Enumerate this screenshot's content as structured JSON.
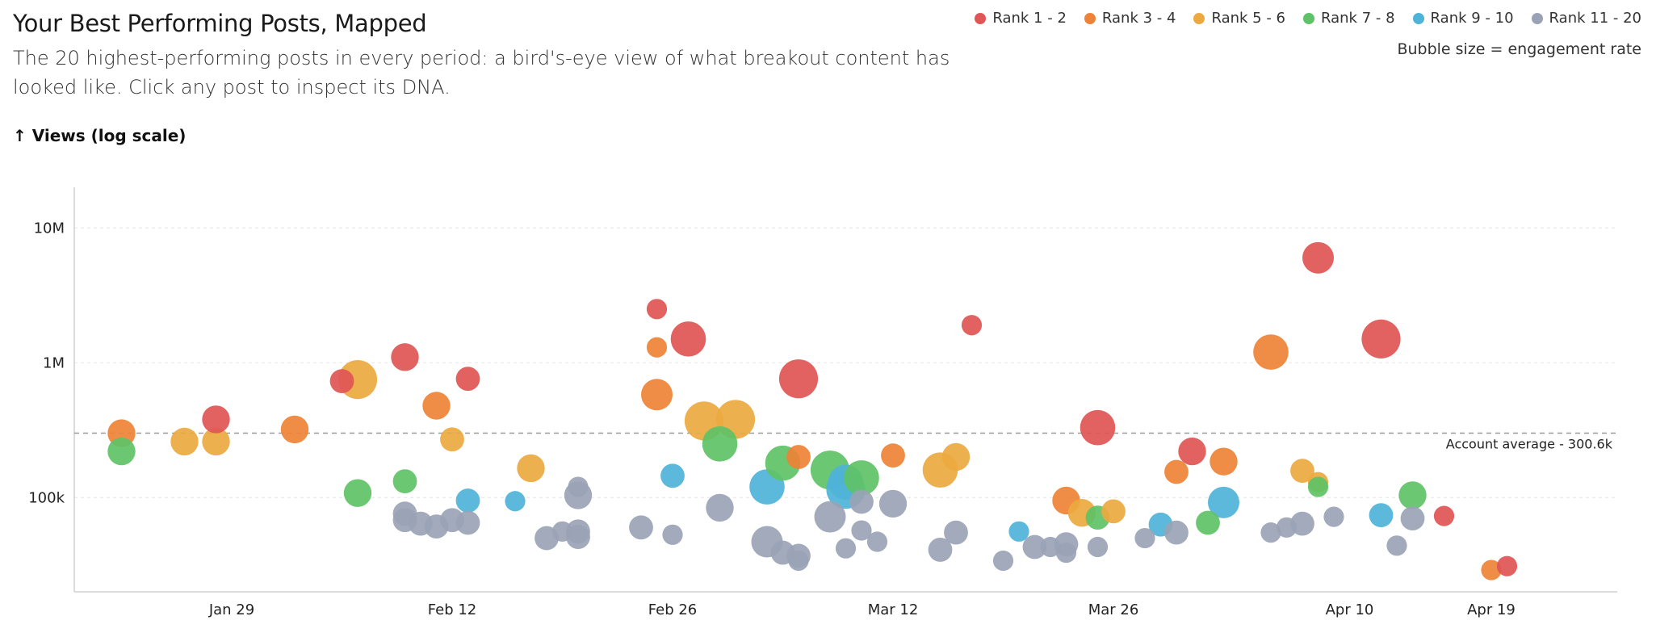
{
  "header": {
    "title": "Your Best Performing Posts, Mapped",
    "subtitle": "The 20 highest-performing posts in every period: a bird's-eye view of what breakout content has looked like. Click any post to inspect its DNA.",
    "y_axis_title": "↑ Views (log scale)"
  },
  "legend": {
    "items": [
      {
        "label": "Rank 1 - 2",
        "color": "#e05555"
      },
      {
        "label": "Rank 3 - 4",
        "color": "#ee8236"
      },
      {
        "label": "Rank 5 - 6",
        "color": "#eba93f"
      },
      {
        "label": "Rank 7 - 8",
        "color": "#5ec266"
      },
      {
        "label": "Rank 9 - 10",
        "color": "#4fb3d8"
      },
      {
        "label": "Rank 11 - 20",
        "color": "#9aa3b5"
      }
    ],
    "note": "Bubble size = engagement rate"
  },
  "chart_data": {
    "type": "scatter",
    "y_scale": "log",
    "ylim": [
      20000,
      20000000
    ],
    "y_ticks": [
      {
        "value": 100000,
        "label": "100k"
      },
      {
        "value": 1000000,
        "label": "1M"
      },
      {
        "value": 10000000,
        "label": "10M"
      }
    ],
    "xlim": [
      "2025-01-19",
      "2025-04-27"
    ],
    "x_ticks": [
      {
        "date": "2025-01-29",
        "label": "Jan 29"
      },
      {
        "date": "2025-02-12",
        "label": "Feb 12"
      },
      {
        "date": "2025-02-26",
        "label": "Feb 26"
      },
      {
        "date": "2025-03-12",
        "label": "Mar 12"
      },
      {
        "date": "2025-03-26",
        "label": "Mar 26"
      },
      {
        "date": "2025-04-10",
        "label": "Apr 10"
      },
      {
        "date": "2025-04-19",
        "label": "Apr 19"
      }
    ],
    "reference_line": {
      "value": 300600,
      "label": "Account average - 300.6k"
    },
    "grid": true,
    "legend_position": "top-right",
    "points": [
      {
        "date": "2025-01-22",
        "views": 300000,
        "rank": 3,
        "size": 2
      },
      {
        "date": "2025-01-22",
        "views": 220000,
        "rank": 7,
        "size": 2
      },
      {
        "date": "2025-01-26",
        "views": 260000,
        "rank": 5,
        "size": 2
      },
      {
        "date": "2025-01-28",
        "views": 260000,
        "rank": 5,
        "size": 2
      },
      {
        "date": "2025-01-28",
        "views": 380000,
        "rank": 1,
        "size": 2
      },
      {
        "date": "2025-02-02",
        "views": 320000,
        "rank": 3,
        "size": 2
      },
      {
        "date": "2025-02-05",
        "views": 730000,
        "rank": 2,
        "size": 1.5
      },
      {
        "date": "2025-02-06",
        "views": 750000,
        "rank": 5,
        "size": 3.5
      },
      {
        "date": "2025-02-06",
        "views": 108000,
        "rank": 7,
        "size": 2
      },
      {
        "date": "2025-02-09",
        "views": 1100000,
        "rank": 1,
        "size": 2
      },
      {
        "date": "2025-02-09",
        "views": 132000,
        "rank": 7,
        "size": 1.5
      },
      {
        "date": "2025-02-09",
        "views": 76000,
        "rank": 11,
        "size": 1.5
      },
      {
        "date": "2025-02-09",
        "views": 68000,
        "rank": 11,
        "size": 1.5
      },
      {
        "date": "2025-02-10",
        "views": 64000,
        "rank": 11,
        "size": 1.5
      },
      {
        "date": "2025-02-11",
        "views": 61000,
        "rank": 11,
        "size": 1.5
      },
      {
        "date": "2025-02-11",
        "views": 480000,
        "rank": 3,
        "size": 2
      },
      {
        "date": "2025-02-12",
        "views": 270000,
        "rank": 5,
        "size": 1.5
      },
      {
        "date": "2025-02-12",
        "views": 68000,
        "rank": 11,
        "size": 1.5
      },
      {
        "date": "2025-02-13",
        "views": 760000,
        "rank": 1,
        "size": 1.5
      },
      {
        "date": "2025-02-13",
        "views": 95000,
        "rank": 9,
        "size": 1.5
      },
      {
        "date": "2025-02-13",
        "views": 65000,
        "rank": 11,
        "size": 1.5
      },
      {
        "date": "2025-02-16",
        "views": 94000,
        "rank": 9,
        "size": 1
      },
      {
        "date": "2025-02-17",
        "views": 165000,
        "rank": 5,
        "size": 2
      },
      {
        "date": "2025-02-18",
        "views": 50000,
        "rank": 11,
        "size": 1.5
      },
      {
        "date": "2025-02-19",
        "views": 56000,
        "rank": 11,
        "size": 1
      },
      {
        "date": "2025-02-20",
        "views": 120000,
        "rank": 11,
        "size": 1
      },
      {
        "date": "2025-02-20",
        "views": 104000,
        "rank": 11,
        "size": 2
      },
      {
        "date": "2025-02-20",
        "views": 56000,
        "rank": 11,
        "size": 1.5
      },
      {
        "date": "2025-02-20",
        "views": 51000,
        "rank": 11,
        "size": 1.5
      },
      {
        "date": "2025-02-24",
        "views": 60000,
        "rank": 11,
        "size": 1.5
      },
      {
        "date": "2025-02-25",
        "views": 2500000,
        "rank": 1,
        "size": 1
      },
      {
        "date": "2025-02-25",
        "views": 1300000,
        "rank": 3,
        "size": 1
      },
      {
        "date": "2025-02-25",
        "views": 580000,
        "rank": 3,
        "size": 2.5
      },
      {
        "date": "2025-02-26",
        "views": 145000,
        "rank": 9,
        "size": 1.5
      },
      {
        "date": "2025-02-26",
        "views": 53000,
        "rank": 11,
        "size": 1
      },
      {
        "date": "2025-02-27",
        "views": 1500000,
        "rank": 1,
        "size": 3
      },
      {
        "date": "2025-02-28",
        "views": 370000,
        "rank": 5,
        "size": 3.5
      },
      {
        "date": "2025-03-01",
        "views": 250000,
        "rank": 7,
        "size": 3
      },
      {
        "date": "2025-03-01",
        "views": 84000,
        "rank": 11,
        "size": 2
      },
      {
        "date": "2025-03-02",
        "views": 380000,
        "rank": 5,
        "size": 3.5
      },
      {
        "date": "2025-03-04",
        "views": 120000,
        "rank": 9,
        "size": 3
      },
      {
        "date": "2025-03-04",
        "views": 47000,
        "rank": 11,
        "size": 2.5
      },
      {
        "date": "2025-03-05",
        "views": 180000,
        "rank": 7,
        "size": 3
      },
      {
        "date": "2025-03-05",
        "views": 39000,
        "rank": 11,
        "size": 1.5
      },
      {
        "date": "2025-03-06",
        "views": 760000,
        "rank": 1,
        "size": 3.5
      },
      {
        "date": "2025-03-06",
        "views": 200000,
        "rank": 3,
        "size": 1.5
      },
      {
        "date": "2025-03-06",
        "views": 37000,
        "rank": 11,
        "size": 1.5
      },
      {
        "date": "2025-03-06",
        "views": 34000,
        "rank": 11,
        "size": 1
      },
      {
        "date": "2025-03-08",
        "views": 160000,
        "rank": 7,
        "size": 3.5
      },
      {
        "date": "2025-03-08",
        "views": 72000,
        "rank": 11,
        "size": 2.5
      },
      {
        "date": "2025-03-09",
        "views": 130000,
        "rank": 9,
        "size": 3
      },
      {
        "date": "2025-03-09",
        "views": 115000,
        "rank": 9,
        "size": 3.5
      },
      {
        "date": "2025-03-09",
        "views": 42000,
        "rank": 11,
        "size": 1
      },
      {
        "date": "2025-03-10",
        "views": 140000,
        "rank": 7,
        "size": 3
      },
      {
        "date": "2025-03-10",
        "views": 93000,
        "rank": 11,
        "size": 1.5
      },
      {
        "date": "2025-03-10",
        "views": 57000,
        "rank": 11,
        "size": 1
      },
      {
        "date": "2025-03-11",
        "views": 47000,
        "rank": 11,
        "size": 1
      },
      {
        "date": "2025-03-12",
        "views": 205000,
        "rank": 3,
        "size": 1.5
      },
      {
        "date": "2025-03-12",
        "views": 90000,
        "rank": 11,
        "size": 2
      },
      {
        "date": "2025-03-15",
        "views": 160000,
        "rank": 5,
        "size": 3
      },
      {
        "date": "2025-03-15",
        "views": 41000,
        "rank": 11,
        "size": 1.5
      },
      {
        "date": "2025-03-16",
        "views": 200000,
        "rank": 5,
        "size": 2
      },
      {
        "date": "2025-03-16",
        "views": 55000,
        "rank": 11,
        "size": 1.5
      },
      {
        "date": "2025-03-17",
        "views": 1900000,
        "rank": 2,
        "size": 1
      },
      {
        "date": "2025-03-19",
        "views": 34000,
        "rank": 11,
        "size": 1
      },
      {
        "date": "2025-03-20",
        "views": 56000,
        "rank": 9,
        "size": 1
      },
      {
        "date": "2025-03-21",
        "views": 43000,
        "rank": 11,
        "size": 1.5
      },
      {
        "date": "2025-03-22",
        "views": 43000,
        "rank": 11,
        "size": 1
      },
      {
        "date": "2025-03-23",
        "views": 95000,
        "rank": 3,
        "size": 2
      },
      {
        "date": "2025-03-23",
        "views": 45000,
        "rank": 11,
        "size": 1.5
      },
      {
        "date": "2025-03-23",
        "views": 39000,
        "rank": 11,
        "size": 1
      },
      {
        "date": "2025-03-24",
        "views": 77000,
        "rank": 5,
        "size": 2
      },
      {
        "date": "2025-03-25",
        "views": 330000,
        "rank": 1,
        "size": 3
      },
      {
        "date": "2025-03-25",
        "views": 71000,
        "rank": 7,
        "size": 1.5
      },
      {
        "date": "2025-03-25",
        "views": 43000,
        "rank": 11,
        "size": 1
      },
      {
        "date": "2025-03-26",
        "views": 79000,
        "rank": 5,
        "size": 1.5
      },
      {
        "date": "2025-03-28",
        "views": 50000,
        "rank": 11,
        "size": 1
      },
      {
        "date": "2025-03-29",
        "views": 63000,
        "rank": 9,
        "size": 1.5
      },
      {
        "date": "2025-03-30",
        "views": 155000,
        "rank": 3,
        "size": 1.5
      },
      {
        "date": "2025-03-30",
        "views": 55000,
        "rank": 11,
        "size": 1.5
      },
      {
        "date": "2025-03-31",
        "views": 220000,
        "rank": 1,
        "size": 2
      },
      {
        "date": "2025-04-01",
        "views": 65000,
        "rank": 7,
        "size": 1.5
      },
      {
        "date": "2025-04-02",
        "views": 185000,
        "rank": 3,
        "size": 2
      },
      {
        "date": "2025-04-02",
        "views": 92000,
        "rank": 9,
        "size": 2.5
      },
      {
        "date": "2025-04-05",
        "views": 1200000,
        "rank": 3,
        "size": 3
      },
      {
        "date": "2025-04-05",
        "views": 55000,
        "rank": 11,
        "size": 1
      },
      {
        "date": "2025-04-06",
        "views": 60000,
        "rank": 11,
        "size": 1
      },
      {
        "date": "2025-04-07",
        "views": 158000,
        "rank": 5,
        "size": 1.5
      },
      {
        "date": "2025-04-07",
        "views": 64000,
        "rank": 11,
        "size": 1.5
      },
      {
        "date": "2025-04-08",
        "views": 130000,
        "rank": 5,
        "size": 1
      },
      {
        "date": "2025-04-08",
        "views": 120000,
        "rank": 7,
        "size": 1
      },
      {
        "date": "2025-04-08",
        "views": 6000000,
        "rank": 1,
        "size": 2.5
      },
      {
        "date": "2025-04-09",
        "views": 72000,
        "rank": 11,
        "size": 1
      },
      {
        "date": "2025-04-12",
        "views": 74000,
        "rank": 9,
        "size": 1.5
      },
      {
        "date": "2025-04-12",
        "views": 1500000,
        "rank": 1,
        "size": 3.5
      },
      {
        "date": "2025-04-13",
        "views": 44000,
        "rank": 11,
        "size": 1
      },
      {
        "date": "2025-04-14",
        "views": 104000,
        "rank": 7,
        "size": 2
      },
      {
        "date": "2025-04-14",
        "views": 70000,
        "rank": 11,
        "size": 1.5
      },
      {
        "date": "2025-04-16",
        "views": 73000,
        "rank": 2,
        "size": 1
      },
      {
        "date": "2025-04-19",
        "views": 29000,
        "rank": 3,
        "size": 1
      },
      {
        "date": "2025-04-20",
        "views": 31000,
        "rank": 1,
        "size": 1
      }
    ]
  }
}
